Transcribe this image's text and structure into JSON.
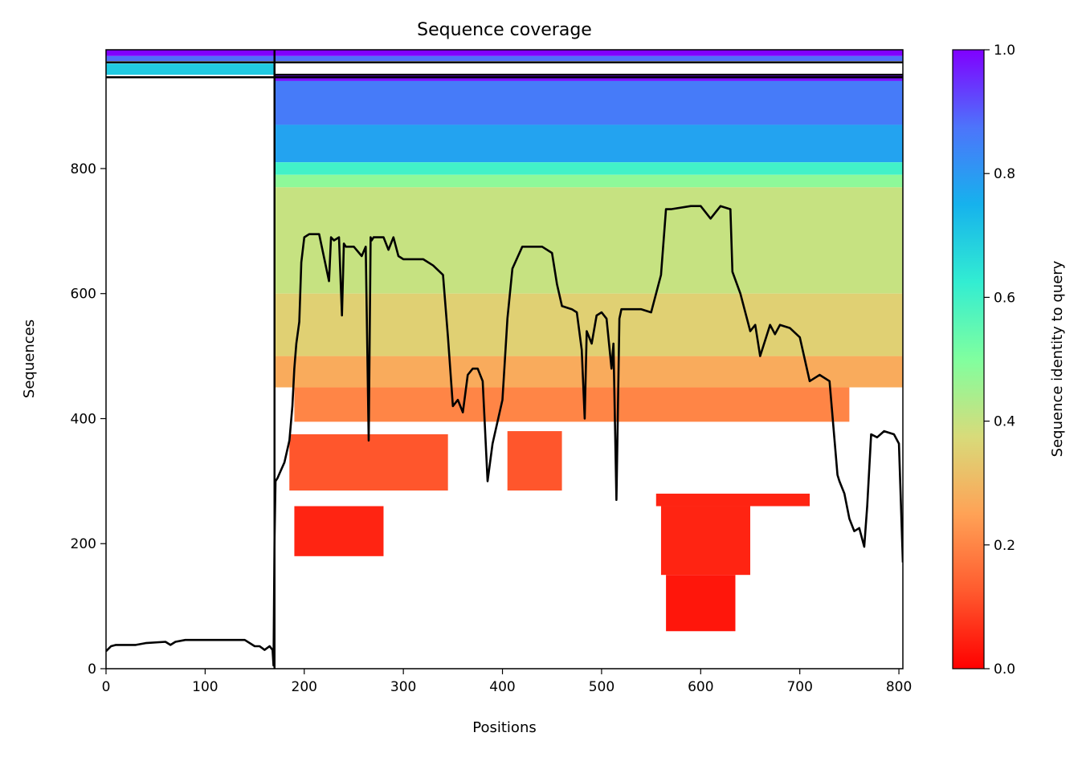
{
  "chart_data": {
    "type": "heatmap",
    "title": "Sequence coverage",
    "xlabel": "Positions",
    "ylabel": "Sequences",
    "xlim": [
      0,
      804
    ],
    "ylim": [
      0,
      990
    ],
    "xticks": [
      0,
      100,
      200,
      300,
      400,
      500,
      600,
      700,
      800
    ],
    "yticks": [
      0,
      200,
      400,
      600,
      800
    ],
    "grid": false,
    "colorbar": {
      "label": "Sequence identity to query",
      "colormap": "rainbow_r",
      "range": [
        0,
        1
      ],
      "ticks": [
        "0.0",
        "0.2",
        "0.4",
        "0.6",
        "0.8",
        "1.0"
      ]
    },
    "query_length": 804,
    "segment_boundary": 170,
    "coverage_line": {
      "name": "coverage",
      "x": [
        0,
        5,
        10,
        30,
        40,
        60,
        65,
        70,
        80,
        90,
        100,
        110,
        120,
        140,
        150,
        155,
        160,
        165,
        168,
        169,
        170,
        171,
        173,
        175,
        180,
        185,
        188,
        190,
        192,
        195,
        197,
        200,
        205,
        215,
        225,
        227,
        230,
        235,
        238,
        240,
        242,
        250,
        258,
        262,
        265,
        267,
        268,
        270,
        280,
        285,
        290,
        295,
        300,
        320,
        330,
        340,
        345,
        350,
        355,
        360,
        365,
        370,
        375,
        380,
        385,
        390,
        400,
        405,
        410,
        420,
        440,
        450,
        455,
        460,
        470,
        475,
        480,
        483,
        485,
        490,
        495,
        500,
        505,
        510,
        512,
        515,
        518,
        520,
        540,
        550,
        560,
        565,
        570,
        590,
        600,
        610,
        620,
        630,
        632,
        640,
        650,
        655,
        660,
        670,
        675,
        680,
        690,
        700,
        710,
        720,
        730,
        738,
        740,
        745,
        750,
        755,
        760,
        765,
        768,
        772,
        778,
        785,
        795,
        800,
        804
      ],
      "y": [
        28,
        36,
        38,
        38,
        41,
        43,
        38,
        43,
        46,
        46,
        46,
        46,
        46,
        46,
        36,
        36,
        30,
        36,
        30,
        5,
        210,
        300,
        305,
        312,
        330,
        365,
        420,
        480,
        520,
        555,
        650,
        690,
        695,
        695,
        620,
        690,
        685,
        690,
        565,
        680,
        675,
        675,
        660,
        675,
        365,
        690,
        685,
        690,
        690,
        670,
        690,
        660,
        655,
        655,
        645,
        630,
        530,
        420,
        430,
        410,
        470,
        480,
        480,
        460,
        300,
        360,
        430,
        560,
        640,
        675,
        675,
        665,
        615,
        580,
        575,
        570,
        510,
        400,
        540,
        520,
        565,
        570,
        560,
        480,
        520,
        270,
        560,
        575,
        575,
        570,
        630,
        735,
        735,
        740,
        740,
        720,
        740,
        735,
        635,
        600,
        540,
        550,
        500,
        550,
        535,
        550,
        545,
        530,
        460,
        470,
        460,
        310,
        300,
        280,
        240,
        220,
        225,
        195,
        260,
        375,
        370,
        380,
        375,
        360,
        170
      ]
    },
    "identity_blocks": [
      {
        "x": [
          170,
          804
        ],
        "y": [
          940,
          950
        ],
        "identity": 0.98
      },
      {
        "x": [
          170,
          804
        ],
        "y": [
          870,
          940
        ],
        "identity": 0.86
      },
      {
        "x": [
          170,
          804
        ],
        "y": [
          810,
          870
        ],
        "identity": 0.78
      },
      {
        "x": [
          170,
          804
        ],
        "y": [
          790,
          810
        ],
        "identity": 0.6
      },
      {
        "x": [
          170,
          804
        ],
        "y": [
          770,
          790
        ],
        "identity": 0.48
      },
      {
        "x": [
          170,
          804
        ],
        "y": [
          600,
          770
        ],
        "identity": 0.4
      },
      {
        "x": [
          170,
          804
        ],
        "y": [
          500,
          600
        ],
        "identity": 0.35
      },
      {
        "x": [
          170,
          804
        ],
        "y": [
          450,
          500
        ],
        "identity": 0.27
      },
      {
        "x": [
          190,
          750
        ],
        "y": [
          395,
          450
        ],
        "identity": 0.2
      },
      {
        "x": [
          185,
          345
        ],
        "y": [
          285,
          375
        ],
        "identity": 0.12
      },
      {
        "x": [
          405,
          460
        ],
        "y": [
          285,
          380
        ],
        "identity": 0.12
      },
      {
        "x": [
          555,
          710
        ],
        "y": [
          260,
          280
        ],
        "identity": 0.05
      },
      {
        "x": [
          560,
          650
        ],
        "y": [
          150,
          260
        ],
        "identity": 0.05
      },
      {
        "x": [
          565,
          635
        ],
        "y": [
          60,
          150
        ],
        "identity": 0.03
      },
      {
        "x": [
          190,
          280
        ],
        "y": [
          180,
          260
        ],
        "identity": 0.05
      }
    ]
  }
}
